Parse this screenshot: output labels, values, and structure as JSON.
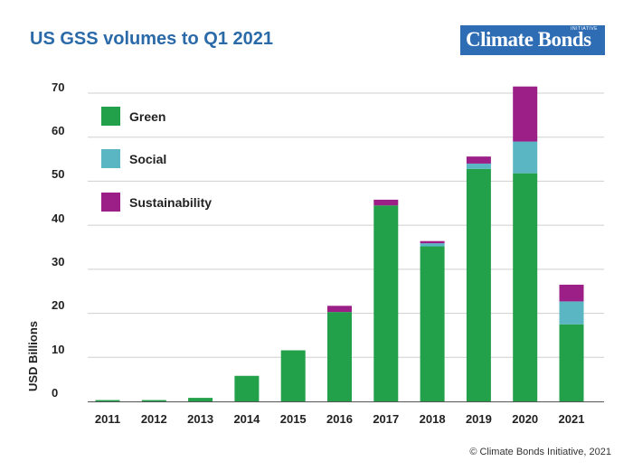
{
  "header": {
    "title": "US GSS volumes to Q1 2021"
  },
  "logo": {
    "text": "Climate Bonds",
    "sub": "INITIATIVE"
  },
  "footer": {
    "credit": "© Climate Bonds Initiative, 2021"
  },
  "colors": {
    "Green": "#23a04a",
    "Social": "#5bb6c4",
    "Sustainability": "#9c1f87",
    "title": "#2b6aa8",
    "logo_bg": "#2e6db4"
  },
  "chart_data": {
    "type": "bar",
    "stacked": true,
    "title": "US GSS volumes to Q1 2021",
    "ylabel": "USD Billions",
    "xlabel": "",
    "ylim": [
      0,
      70
    ],
    "yticks": [
      0,
      10,
      20,
      30,
      40,
      50,
      60,
      70
    ],
    "grid": true,
    "legend_position": "top-left",
    "categories": [
      "2011",
      "2012",
      "2013",
      "2014",
      "2015",
      "2016",
      "2017",
      "2018",
      "2019",
      "2020",
      "2021"
    ],
    "series": [
      {
        "name": "Green",
        "values": [
          0.3,
          0.3,
          0.8,
          5.8,
          11.6,
          20.3,
          44.5,
          35.2,
          52.8,
          51.8,
          17.5
        ]
      },
      {
        "name": "Social",
        "values": [
          0,
          0,
          0,
          0,
          0,
          0,
          0,
          0.7,
          1.2,
          7.2,
          5.2
        ]
      },
      {
        "name": "Sustainability",
        "values": [
          0,
          0,
          0,
          0,
          0,
          1.4,
          1.3,
          0.5,
          1.6,
          12.5,
          3.8
        ]
      }
    ]
  }
}
